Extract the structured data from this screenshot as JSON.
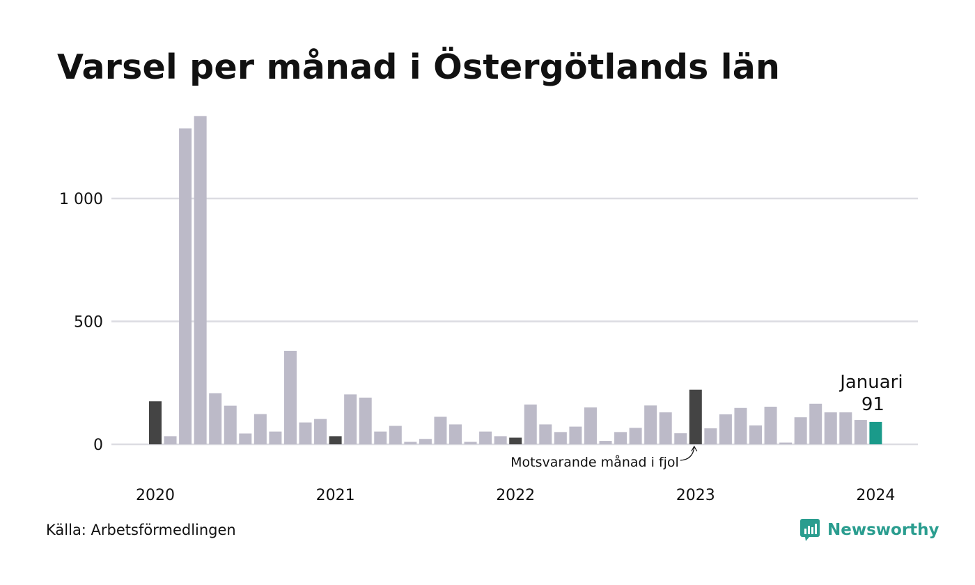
{
  "title": "Varsel per månad i Östergötlands län",
  "source": "Källa: Arbetsförmedlingen",
  "brand": "Newsworthy",
  "colors": {
    "bar_default": "#bcbac8",
    "bar_same_month": "#444444",
    "bar_current": "#1a9a8a",
    "grid": "#dcdce2",
    "brand": "#2a9d8f"
  },
  "chart_data": {
    "type": "bar",
    "ylim": [
      0,
      1350
    ],
    "yticks": [
      0,
      500,
      1000
    ],
    "ytick_labels": [
      "0",
      "500",
      "1 000"
    ],
    "year_labels": [
      {
        "label": "2020",
        "index": 0
      },
      {
        "label": "2021",
        "index": 12
      },
      {
        "label": "2022",
        "index": 24
      },
      {
        "label": "2023",
        "index": 36
      },
      {
        "label": "2024",
        "index": 48
      }
    ],
    "values": [
      175,
      33,
      1285,
      1335,
      208,
      157,
      44,
      123,
      52,
      380,
      89,
      103,
      33,
      203,
      190,
      52,
      75,
      10,
      22,
      112,
      81,
      10,
      52,
      33,
      27,
      162,
      81,
      50,
      72,
      150,
      14,
      50,
      67,
      158,
      130,
      45,
      222,
      65,
      122,
      148,
      77,
      153,
      7,
      110,
      165,
      130,
      130,
      99,
      91
    ],
    "highlight_same_month": [
      0,
      12,
      24,
      36
    ],
    "highlight_current": 48,
    "current_label": "Januari",
    "current_value_label": "91",
    "annotation": "Motsvarande månad i fjol"
  }
}
